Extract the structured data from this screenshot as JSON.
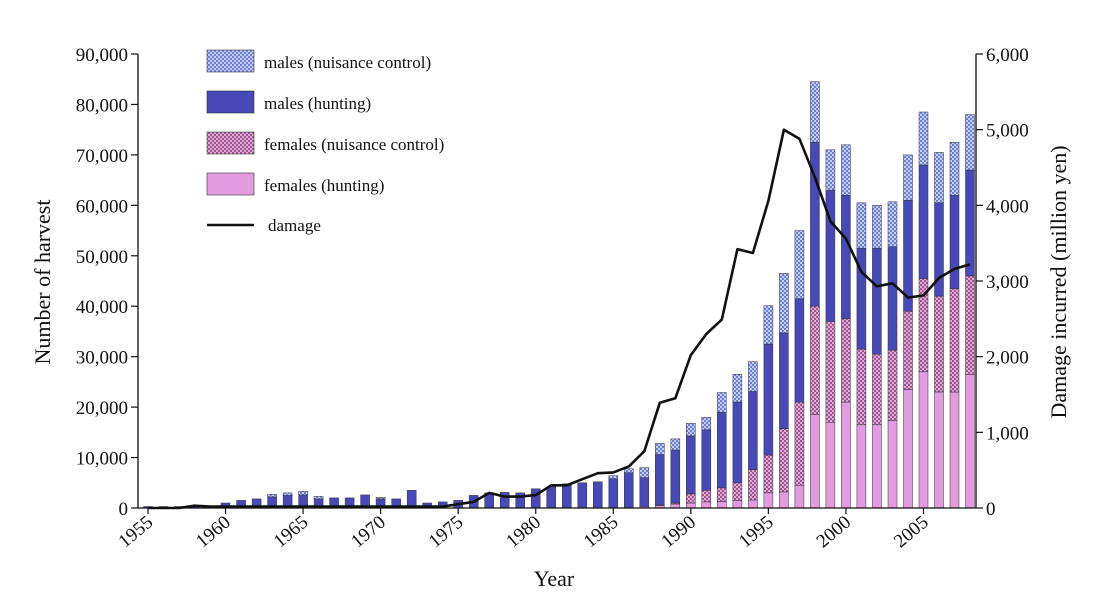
{
  "chart_data": {
    "type": "bar",
    "stacked": true,
    "xlabel": "Year",
    "ylabel_left": "Number of harvest",
    "ylabel_right": "Damage incurred (million yen)",
    "ylim_left": [
      0,
      90000
    ],
    "ylim_right": [
      0,
      6000
    ],
    "y_ticks_left": [
      "0",
      "10,000",
      "20,000",
      "30,000",
      "40,000",
      "50,000",
      "60,000",
      "70,000",
      "80,000",
      "90,000"
    ],
    "y_ticks_right": [
      "0",
      "1,000",
      "2,000",
      "3,000",
      "4,000",
      "5,000",
      "6,000"
    ],
    "x_tick_labels": [
      "1955",
      "1960",
      "1965",
      "1970",
      "1975",
      "1980",
      "1985",
      "1990",
      "1995",
      "2000",
      "2005"
    ],
    "grid": false,
    "legend_position": "top-left",
    "years": [
      1955,
      1956,
      1957,
      1958,
      1959,
      1960,
      1961,
      1962,
      1963,
      1964,
      1965,
      1966,
      1967,
      1968,
      1969,
      1970,
      1971,
      1972,
      1973,
      1974,
      1975,
      1976,
      1977,
      1978,
      1979,
      1980,
      1981,
      1982,
      1983,
      1984,
      1985,
      1986,
      1987,
      1988,
      1989,
      1990,
      1991,
      1992,
      1993,
      1994,
      1995,
      1996,
      1997,
      1998,
      1999,
      2000,
      2001,
      2002,
      2003,
      2004,
      2005,
      2006,
      2007,
      2008
    ],
    "series": [
      {
        "name": "females (hunting)",
        "color": "#e39be0",
        "values": [
          0,
          0,
          0,
          0,
          0,
          0,
          0,
          0,
          0,
          0,
          0,
          0,
          0,
          0,
          0,
          0,
          0,
          0,
          0,
          0,
          0,
          0,
          0,
          0,
          0,
          0,
          0,
          0,
          0,
          0,
          0,
          0,
          300,
          500,
          800,
          1000,
          1200,
          1300,
          1500,
          1600,
          3000,
          3200,
          4500,
          18500,
          17000,
          21000,
          16500,
          16500,
          17300,
          23500,
          27000,
          23000,
          23000,
          26500
        ]
      },
      {
        "name": "females (nuisance control)",
        "color": "#b770a8",
        "values": [
          0,
          0,
          0,
          0,
          0,
          0,
          0,
          0,
          0,
          0,
          0,
          0,
          0,
          0,
          0,
          0,
          0,
          0,
          0,
          0,
          0,
          0,
          0,
          0,
          0,
          0,
          0,
          0,
          0,
          0,
          0,
          0,
          0,
          100,
          200,
          1800,
          2300,
          2700,
          3500,
          6000,
          7500,
          12500,
          16500,
          21500,
          20000,
          16500,
          15000,
          14000,
          14000,
          15500,
          18500,
          19000,
          20500,
          19500
        ]
      },
      {
        "name": "males (hunting)",
        "color": "#4848b8",
        "values": [
          300,
          300,
          300,
          300,
          400,
          1000,
          1500,
          1800,
          2200,
          2500,
          2600,
          1800,
          2000,
          2000,
          2600,
          1800,
          1800,
          3500,
          1000,
          1200,
          1500,
          2500,
          3000,
          3100,
          3000,
          3800,
          4200,
          4800,
          5000,
          5200,
          5800,
          7000,
          5700,
          10000,
          10500,
          11500,
          12000,
          15000,
          16000,
          15500,
          22000,
          19000,
          20500,
          32500,
          26000,
          24500,
          20000,
          21000,
          20500,
          22000,
          22500,
          18500,
          18500,
          21000
        ]
      },
      {
        "name": "males (nuisance control)",
        "color": "#8fa2e6",
        "values": [
          0,
          0,
          0,
          0,
          0,
          0,
          0,
          0,
          500,
          500,
          700,
          500,
          0,
          0,
          0,
          300,
          0,
          0,
          0,
          0,
          0,
          0,
          0,
          0,
          0,
          0,
          0,
          0,
          0,
          0,
          600,
          800,
          2000,
          2200,
          2200,
          2500,
          2500,
          3900,
          5500,
          5900,
          7600,
          11800,
          13500,
          12000,
          8000,
          10000,
          9000,
          8500,
          8900,
          9000,
          10500,
          10000,
          10500,
          11000
        ]
      }
    ],
    "damage_line": {
      "name": "damage",
      "color": "#111111",
      "values": [
        0,
        0,
        0,
        30,
        20,
        20,
        20,
        20,
        20,
        20,
        20,
        20,
        20,
        20,
        20,
        20,
        20,
        20,
        20,
        20,
        50,
        80,
        200,
        150,
        150,
        170,
        300,
        300,
        380,
        460,
        470,
        550,
        750,
        1390,
        1450,
        2020,
        2300,
        2490,
        3420,
        3370,
        4060,
        5000,
        4880,
        4370,
        3790,
        3560,
        3120,
        2930,
        2970,
        2780,
        2810,
        3040,
        3160,
        3220
      ]
    }
  }
}
